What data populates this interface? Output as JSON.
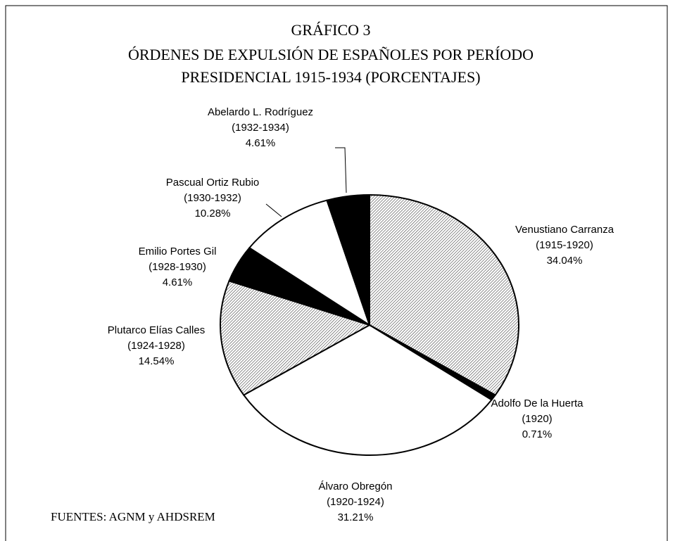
{
  "chart_data": {
    "type": "pie",
    "title": "GRÁFICO 3",
    "subtitle": [
      "ÓRDENES DE EXPULSIÓN DE ESPAÑOLES POR PERÍODO",
      "PRESIDENCIAL 1915-1934 (PORCENTAJES)"
    ],
    "categories": [
      "Venustiano Carranza",
      "Adolfo De la Huerta",
      "Álvaro Obregón",
      "Plutarco Elías Calles",
      "Emilio Portes Gil",
      "Pascual Ortiz Rubio",
      "Abelardo L. Rodríguez"
    ],
    "periods": [
      "(1915-1920)",
      "(1920)",
      "(1920-1924)",
      "(1924-1928)",
      "(1928-1930)",
      "(1930-1932)",
      "(1932-1934)"
    ],
    "values": [
      34.04,
      0.71,
      31.21,
      14.54,
      4.61,
      10.28,
      4.61
    ],
    "value_labels": [
      "34.04%",
      "0.71%",
      "31.21%",
      "14.54%",
      "4.61%",
      "10.28%",
      "4.61%"
    ],
    "fills": [
      "hatch",
      "#000000",
      "#ffffff",
      "hatch",
      "#000000",
      "#ffffff",
      "#000000"
    ],
    "source": "FUENTES: AGNM y AHDSREM"
  }
}
